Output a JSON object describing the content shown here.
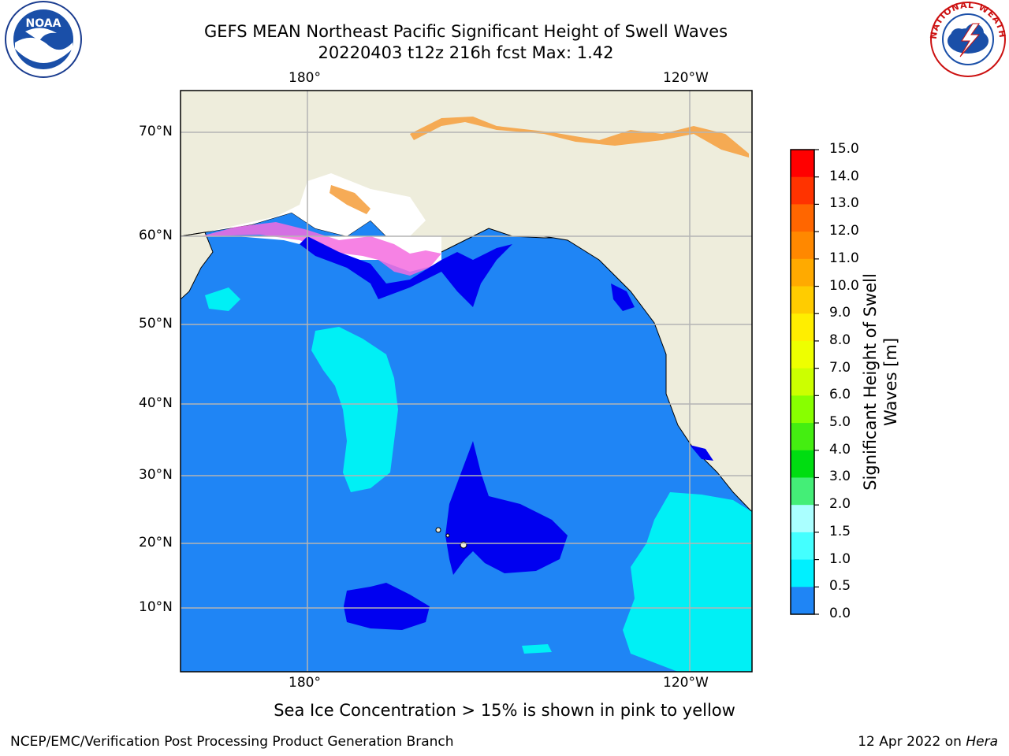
{
  "title": {
    "line1": "GEFS MEAN Northeast Pacific Significant Height of Swell Waves",
    "line2": "20220403 t12z 216h fcst   Max: 1.42"
  },
  "map": {
    "lon_labels_top": [
      "180°",
      "120°W"
    ],
    "lon_labels_bottom": [
      "180°",
      "120°W"
    ],
    "lat_labels": [
      "70°N",
      "60°N",
      "50°N",
      "40°N",
      "30°N",
      "20°N",
      "10°N"
    ],
    "colors": {
      "ocean_default": "#1f85f5",
      "ocean_low": "#0000f0",
      "ocean_mid": "#00f0f5",
      "land": "#eeeddc",
      "ice_white": "#ffffff",
      "ice_pink": "#f56cdf",
      "ice_orange": "#f5a244",
      "ice_yellow": "#f5d84a",
      "grid": "#b4b4b4"
    }
  },
  "colorbar": {
    "label_line1": "Significant Height of Swell",
    "label_line2": "Waves [m]",
    "ticks": [
      "15.0",
      "14.0",
      "13.0",
      "12.0",
      "11.0",
      "10.0",
      "9.0",
      "8.0",
      "7.0",
      "6.0",
      "5.0",
      "4.0",
      "3.0",
      "2.0",
      "1.5",
      "1.0",
      "0.5",
      "0.0"
    ],
    "colors": [
      "#ff0000",
      "#ff3300",
      "#ff6600",
      "#ff8800",
      "#ffaa00",
      "#ffcc00",
      "#ffee00",
      "#eeff00",
      "#ccff00",
      "#88ff00",
      "#44ee11",
      "#00dd11",
      "#44ee77",
      "#aaffff",
      "#44ffff",
      "#00f0ff",
      "#1f85f5",
      "#0000f0"
    ]
  },
  "note": "Sea Ice Concentration > 15% is shown in pink to yellow",
  "footer": {
    "left": "NCEP/EMC/Verification Post Processing Product Generation Branch",
    "right_prefix": "12 Apr 2022 on ",
    "right_host": "Hera"
  },
  "logos": {
    "noaa_text": "NOAA",
    "nws_text": "NATIONAL WEATHER SERVICE"
  }
}
